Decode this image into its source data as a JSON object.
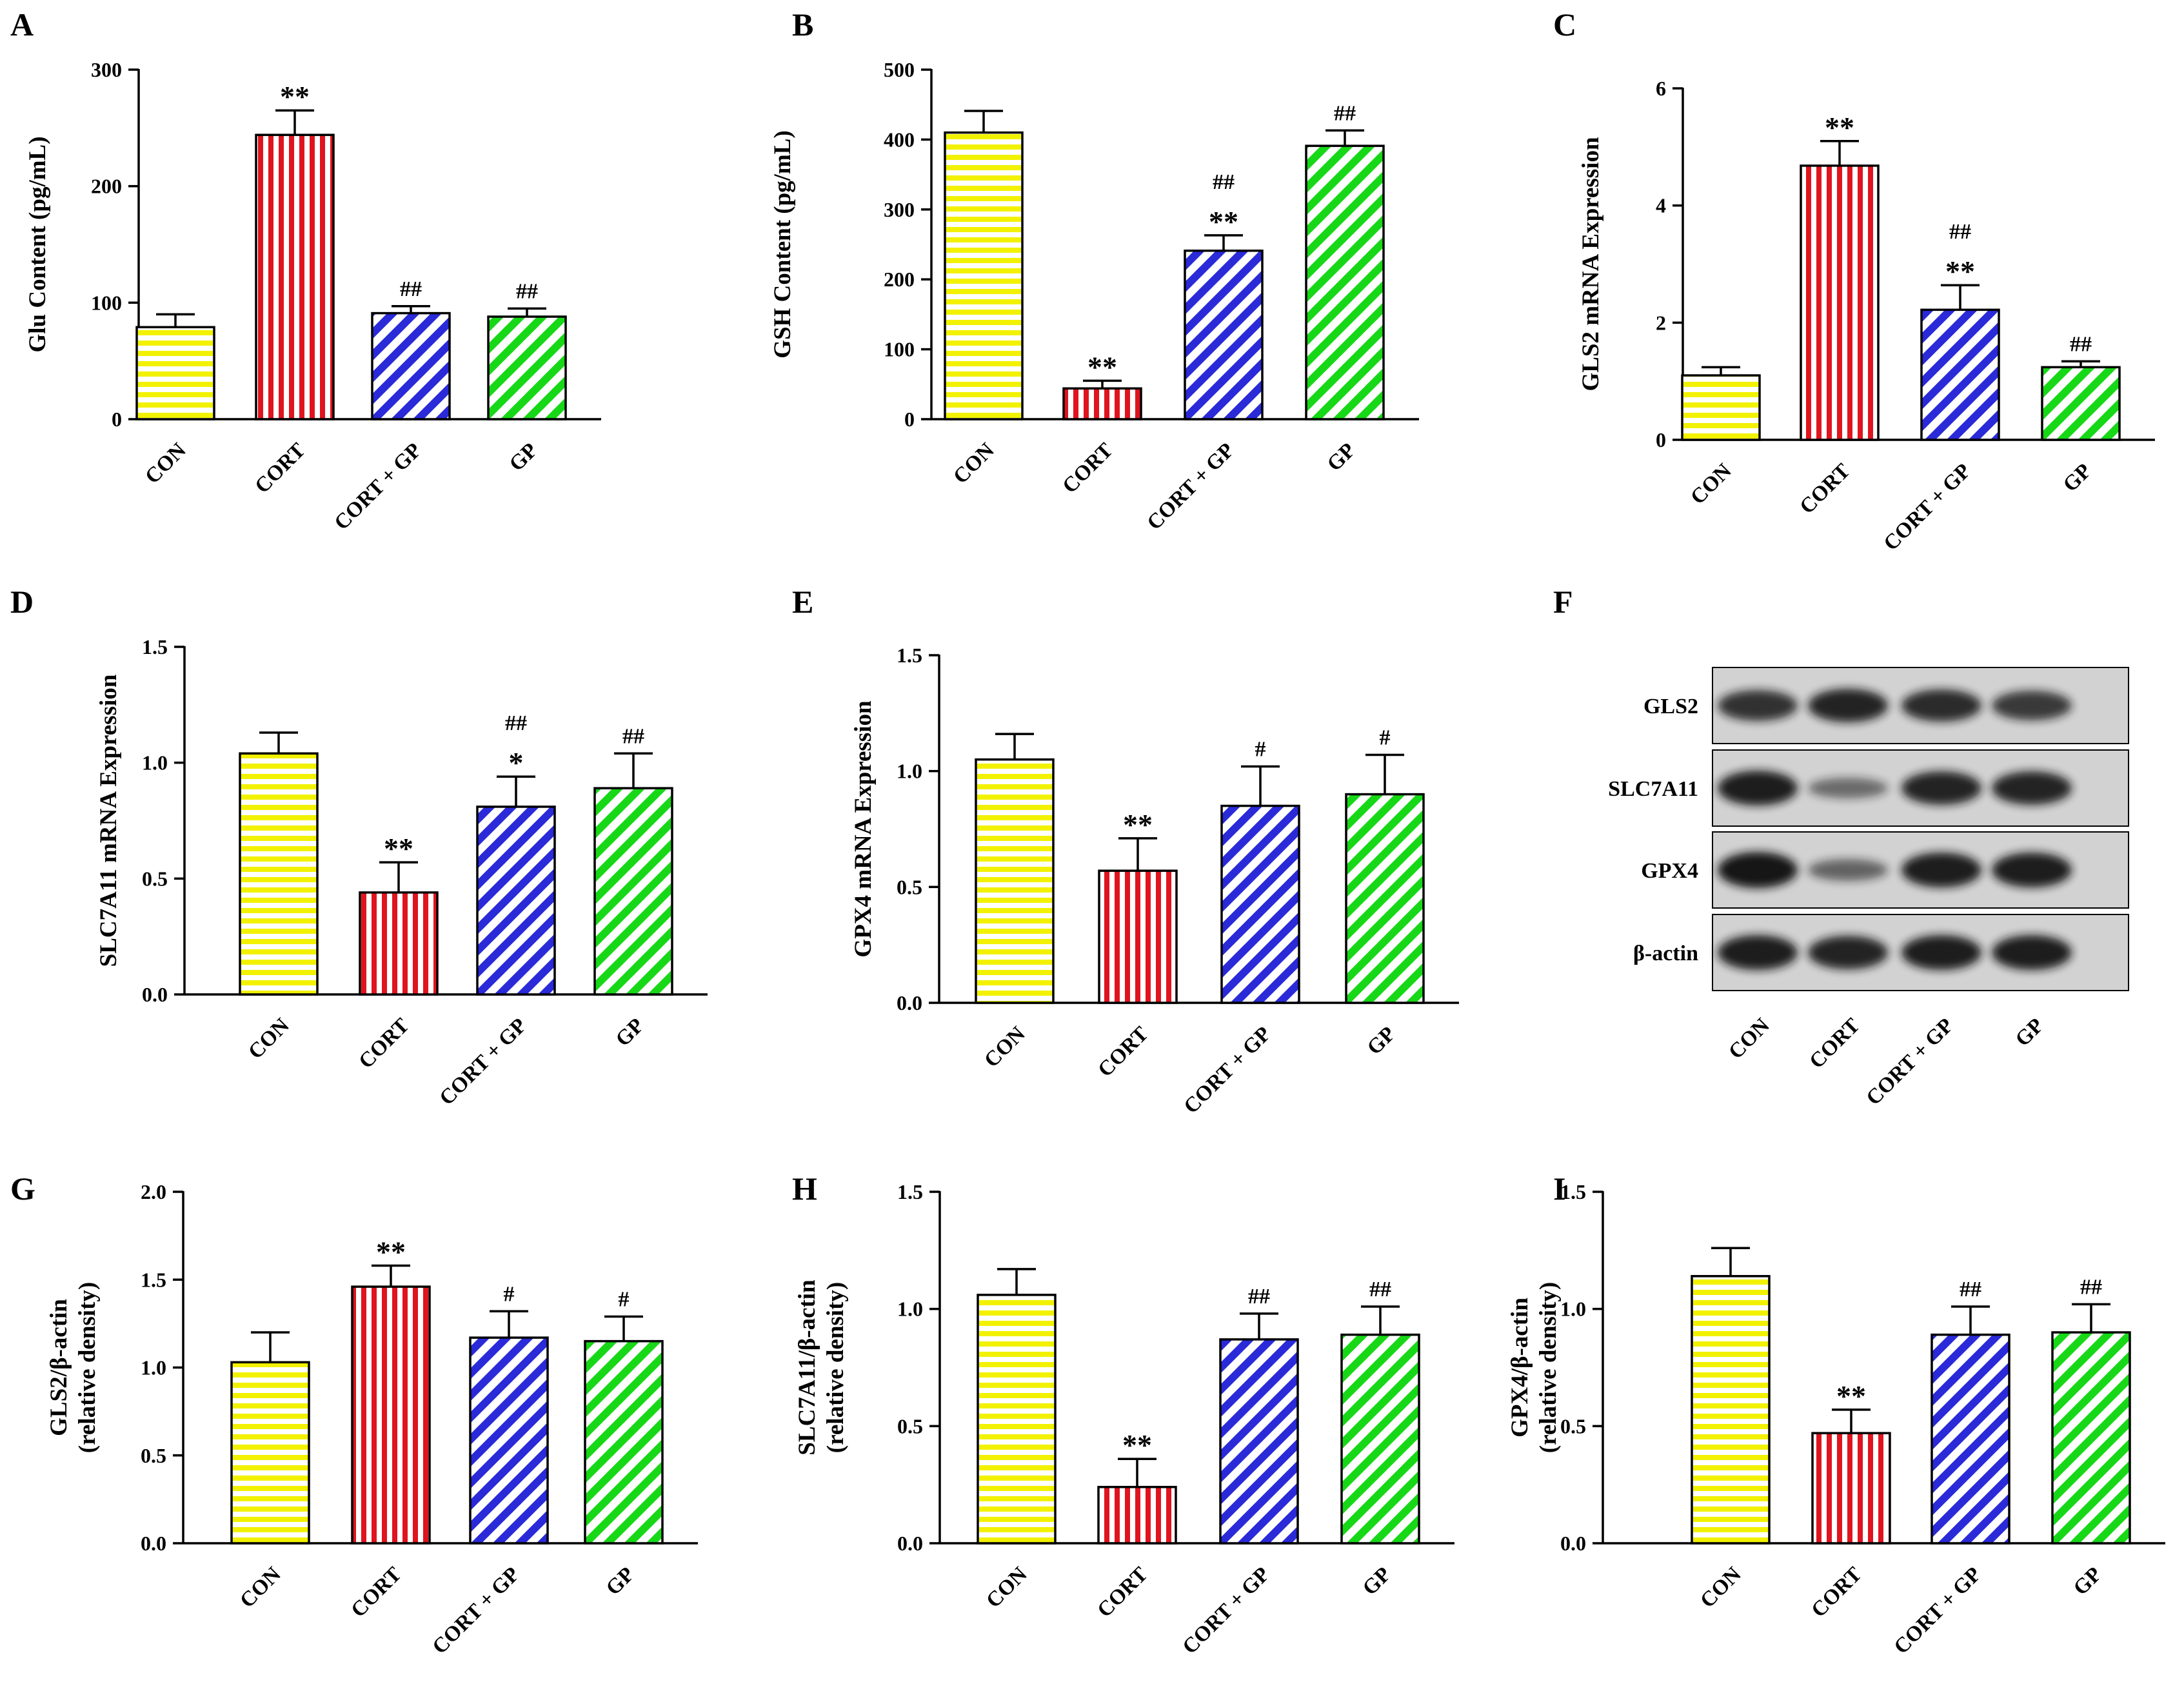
{
  "colors": {
    "CON": "#f2f200",
    "CORT": "#e0141e",
    "CORT + GP": "#2a2ad8",
    "GP": "#17d817",
    "axis": "#000000",
    "blot_bg": "#d2d2d2",
    "band": "#151515"
  },
  "chart_data": [
    {
      "letter": "A",
      "type": "bar",
      "ylabel": "Glu Content (pg/mL)",
      "categories": [
        "CON",
        "CORT",
        "CORT + GP",
        "GP"
      ],
      "patterns": [
        "hstripe",
        "vstripe",
        "diag",
        "diag"
      ],
      "values": [
        79,
        244,
        91,
        88
      ],
      "errors": [
        11,
        21,
        6,
        7
      ],
      "ylim": [
        0,
        300
      ],
      "yticks": [
        0,
        100,
        200,
        300
      ],
      "tick_labels": [
        "0",
        "100",
        "200",
        "300"
      ],
      "stars": [
        "",
        "**",
        "",
        ""
      ],
      "hashes": [
        "",
        "",
        "##",
        "##"
      ]
    },
    {
      "letter": "B",
      "type": "bar",
      "ylabel": "GSH Content (pg/mL)",
      "categories": [
        "CON",
        "CORT",
        "CORT + GP",
        "GP"
      ],
      "patterns": [
        "hstripe",
        "vstripe",
        "diag",
        "diag"
      ],
      "values": [
        410,
        44,
        241,
        391
      ],
      "errors": [
        31,
        11,
        22,
        22
      ],
      "ylim": [
        0,
        500
      ],
      "yticks": [
        0,
        100,
        200,
        300,
        400,
        500
      ],
      "tick_labels": [
        "0",
        "100",
        "200",
        "300",
        "400",
        "500"
      ],
      "stars": [
        "",
        "**",
        "**",
        ""
      ],
      "hashes": [
        "",
        "",
        "##",
        "##"
      ]
    },
    {
      "letter": "C",
      "type": "bar",
      "ylabel": "GLS2 mRNA Expression",
      "categories": [
        "CON",
        "CORT",
        "CORT + GP",
        "GP"
      ],
      "patterns": [
        "hstripe",
        "vstripe",
        "diag",
        "diag"
      ],
      "values": [
        1.1,
        4.68,
        2.22,
        1.24
      ],
      "errors": [
        0.14,
        0.42,
        0.42,
        0.1
      ],
      "ylim": [
        0,
        6
      ],
      "yticks": [
        0,
        2,
        4,
        6
      ],
      "tick_labels": [
        "0",
        "2",
        "4",
        "6"
      ],
      "stars": [
        "",
        "**",
        "**",
        ""
      ],
      "hashes": [
        "",
        "",
        "##",
        "##"
      ]
    },
    {
      "letter": "D",
      "type": "bar",
      "ylabel": "SLC7A11 mRNA Expression",
      "categories": [
        "CON",
        "CORT",
        "CORT + GP",
        "GP"
      ],
      "patterns": [
        "hstripe",
        "vstripe",
        "diag",
        "diag"
      ],
      "values": [
        1.04,
        0.44,
        0.81,
        0.89
      ],
      "errors": [
        0.09,
        0.13,
        0.13,
        0.15
      ],
      "ylim": [
        0,
        1.5
      ],
      "yticks": [
        0,
        0.5,
        1.0,
        1.5
      ],
      "tick_labels": [
        "0.0",
        "0.5",
        "1.0",
        "1.5"
      ],
      "stars": [
        "",
        "**",
        "*",
        ""
      ],
      "hashes": [
        "",
        "",
        "##",
        "##"
      ]
    },
    {
      "letter": "E",
      "type": "bar",
      "ylabel": "GPX4 mRNA Expression",
      "categories": [
        "CON",
        "CORT",
        "CORT + GP",
        "GP"
      ],
      "patterns": [
        "hstripe",
        "vstripe",
        "diag",
        "diag"
      ],
      "values": [
        1.05,
        0.57,
        0.85,
        0.9
      ],
      "errors": [
        0.11,
        0.14,
        0.17,
        0.17
      ],
      "ylim": [
        0,
        1.5
      ],
      "yticks": [
        0,
        0.5,
        1.0,
        1.5
      ],
      "tick_labels": [
        "0.0",
        "0.5",
        "1.0",
        "1.5"
      ],
      "stars": [
        "",
        "**",
        "",
        ""
      ],
      "hashes": [
        "",
        "",
        "#",
        "#"
      ]
    },
    {
      "letter": "G",
      "type": "bar",
      "ylabel": [
        "GLS2/β-actin",
        "(relative density)"
      ],
      "categories": [
        "CON",
        "CORT",
        "CORT + GP",
        "GP"
      ],
      "patterns": [
        "hstripe",
        "vstripe",
        "diag",
        "diag"
      ],
      "values": [
        1.03,
        1.46,
        1.17,
        1.15
      ],
      "errors": [
        0.17,
        0.12,
        0.15,
        0.14
      ],
      "ylim": [
        0,
        2.0
      ],
      "yticks": [
        0,
        0.5,
        1.0,
        1.5,
        2.0
      ],
      "tick_labels": [
        "0.0",
        "0.5",
        "1.0",
        "1.5",
        "2.0"
      ],
      "stars": [
        "",
        "**",
        "",
        ""
      ],
      "hashes": [
        "",
        "",
        "#",
        "#"
      ]
    },
    {
      "letter": "H",
      "type": "bar",
      "ylabel": [
        "SLC7A11/β-actin",
        "(relative density)"
      ],
      "categories": [
        "CON",
        "CORT",
        "CORT + GP",
        "GP"
      ],
      "patterns": [
        "hstripe",
        "vstripe",
        "diag",
        "diag"
      ],
      "values": [
        1.06,
        0.24,
        0.87,
        0.89
      ],
      "errors": [
        0.11,
        0.12,
        0.11,
        0.12
      ],
      "ylim": [
        0,
        1.5
      ],
      "yticks": [
        0,
        0.5,
        1.0,
        1.5
      ],
      "tick_labels": [
        "0.0",
        "0.5",
        "1.0",
        "1.5"
      ],
      "stars": [
        "",
        "**",
        "",
        ""
      ],
      "hashes": [
        "",
        "",
        "##",
        "##"
      ]
    },
    {
      "letter": "I",
      "type": "bar",
      "ylabel": [
        "GPX4/β-actin",
        "(relative density)"
      ],
      "categories": [
        "CON",
        "CORT",
        "CORT + GP",
        "GP"
      ],
      "patterns": [
        "hstripe",
        "vstripe",
        "diag",
        "diag"
      ],
      "values": [
        1.14,
        0.47,
        0.89,
        0.9
      ],
      "errors": [
        0.12,
        0.1,
        0.12,
        0.12
      ],
      "ylim": [
        0,
        1.5
      ],
      "yticks": [
        0,
        0.5,
        1.0,
        1.5
      ],
      "tick_labels": [
        "0.0",
        "0.5",
        "1.0",
        "1.5"
      ],
      "stars": [
        "",
        "**",
        "",
        ""
      ],
      "hashes": [
        "",
        "",
        "##",
        "##"
      ]
    }
  ],
  "western_blot": {
    "letter": "F",
    "proteins": [
      "GLS2",
      "SLC7A11",
      "GPX4",
      "β-actin"
    ],
    "lanes": [
      "CON",
      "CORT",
      "CORT + GP",
      "GP"
    ],
    "band_intensity": [
      [
        0.8,
        0.9,
        0.85,
        0.75
      ],
      [
        0.95,
        0.4,
        0.9,
        0.9
      ],
      [
        1.0,
        0.45,
        0.95,
        0.95
      ],
      [
        0.95,
        0.9,
        0.95,
        0.95
      ]
    ]
  }
}
